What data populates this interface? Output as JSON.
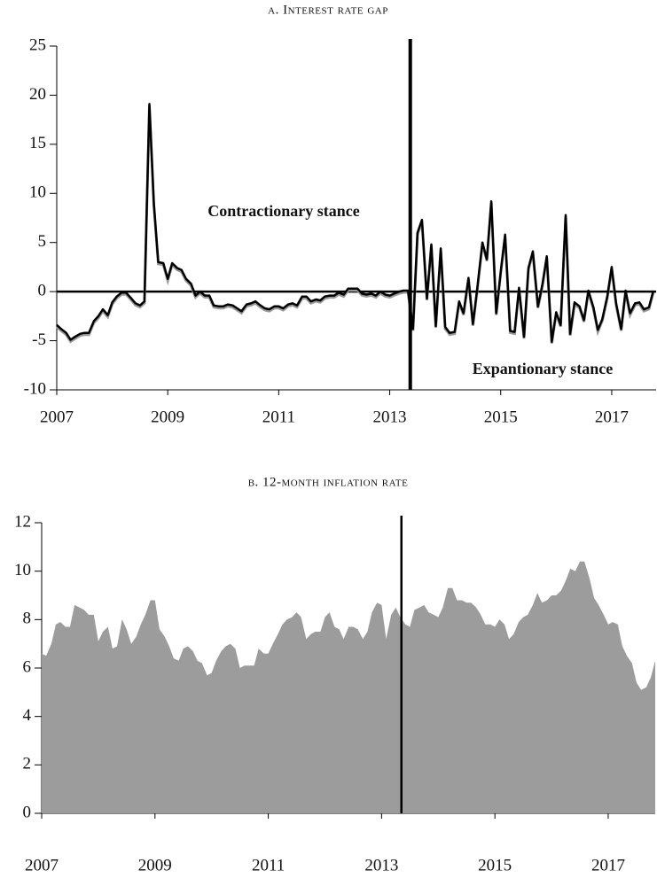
{
  "chart_data": [
    {
      "type": "line",
      "title": "a. Interest rate gap",
      "color": "#000000",
      "x": [
        2007,
        2007.08,
        2007.17,
        2007.25,
        2007.33,
        2007.42,
        2007.5,
        2007.58,
        2007.67,
        2007.75,
        2007.83,
        2007.92,
        2008,
        2008.08,
        2008.17,
        2008.25,
        2008.33,
        2008.42,
        2008.5,
        2008.58,
        2008.67,
        2008.75,
        2008.83,
        2008.92,
        2009,
        2009.08,
        2009.17,
        2009.25,
        2009.33,
        2009.42,
        2009.5,
        2009.58,
        2009.67,
        2009.75,
        2009.83,
        2009.92,
        2010,
        2010.08,
        2010.17,
        2010.25,
        2010.33,
        2010.42,
        2010.5,
        2010.58,
        2010.67,
        2010.75,
        2010.83,
        2010.92,
        2011,
        2011.08,
        2011.17,
        2011.25,
        2011.33,
        2011.42,
        2011.5,
        2011.58,
        2011.67,
        2011.75,
        2011.83,
        2011.92,
        2012,
        2012.08,
        2012.17,
        2012.25,
        2012.33,
        2012.42,
        2012.5,
        2012.58,
        2012.67,
        2012.75,
        2012.83,
        2012.92,
        2013,
        2013.08,
        2013.17,
        2013.25,
        2013.33,
        2013.42,
        2013.5,
        2013.58,
        2013.67,
        2013.75,
        2013.83,
        2013.92,
        2014,
        2014.08,
        2014.17,
        2014.25,
        2014.33,
        2014.42,
        2014.5,
        2014.58,
        2014.67,
        2014.75,
        2014.83,
        2014.92,
        2015,
        2015.08,
        2015.17,
        2015.25,
        2015.33,
        2015.42,
        2015.5,
        2015.58,
        2015.67,
        2015.75,
        2015.83,
        2015.92,
        2016,
        2016.08,
        2016.17,
        2016.25,
        2016.33,
        2016.42,
        2016.5,
        2016.58,
        2016.67,
        2016.75,
        2016.83,
        2016.92,
        2017,
        2017.08,
        2017.17,
        2017.25,
        2017.33,
        2017.42,
        2017.5,
        2017.58,
        2017.67,
        2017.75
      ],
      "values": [
        -3.4,
        -3.8,
        -4.2,
        -4.9,
        -4.6,
        -4.3,
        -4.2,
        -4.2,
        -3.0,
        -2.5,
        -1.8,
        -2.4,
        -1.1,
        -0.5,
        -0.1,
        -0.1,
        -0.6,
        -1.2,
        -1.4,
        -1.0,
        19.1,
        9.0,
        3.0,
        2.9,
        1.3,
        2.9,
        2.4,
        2.2,
        1.3,
        0.8,
        -0.4,
        0.0,
        -0.4,
        -0.4,
        -1.4,
        -1.5,
        -1.5,
        -1.3,
        -1.4,
        -1.7,
        -2.0,
        -1.3,
        -1.2,
        -1.0,
        -1.4,
        -1.7,
        -1.8,
        -1.5,
        -1.5,
        -1.7,
        -1.3,
        -1.2,
        -1.4,
        -0.5,
        -0.5,
        -1.0,
        -0.8,
        -0.9,
        -0.5,
        -0.4,
        -0.4,
        -0.1,
        -0.3,
        0.3,
        0.3,
        0.3,
        -0.2,
        -0.3,
        -0.2,
        -0.4,
        0.0,
        -0.3,
        -0.4,
        -0.2,
        0.0,
        0.1,
        0.1,
        -3.8,
        6.0,
        7.3,
        -0.7,
        4.8,
        -3.5,
        4.4,
        -3.6,
        -4.2,
        -4.1,
        -1.0,
        -2.2,
        1.4,
        -3.3,
        0.5,
        5.0,
        3.3,
        9.2,
        -2.2,
        2.0,
        5.8,
        -4.0,
        -4.1,
        0.4,
        -4.6,
        2.4,
        4.1,
        -1.5,
        0.7,
        3.6,
        -5.1,
        -2.1,
        -3.4,
        7.8,
        -4.3,
        -1.1,
        -1.5,
        -2.9,
        0.1,
        -1.6,
        -3.9,
        -2.8,
        -0.5,
        2.5,
        -1.2,
        -3.8,
        0.1,
        -2.2,
        -1.2,
        -1.1,
        -1.8,
        -1.6,
        0.1
      ],
      "xlim": [
        2007,
        2017.8
      ],
      "ylim": [
        -10,
        25
      ],
      "xticks": [
        2007,
        2009,
        2011,
        2013,
        2015,
        2017
      ],
      "yticks": [
        -10,
        -5,
        0,
        5,
        10,
        15,
        20,
        25
      ],
      "hline": 0,
      "vline": 2013.37,
      "annotations": [
        "Contractionary stance",
        "Expantionary stance"
      ]
    },
    {
      "type": "area",
      "title": "b. 12-month inflation rate",
      "color": "#9c9c9c",
      "x": [
        2007,
        2007.08,
        2007.17,
        2007.25,
        2007.33,
        2007.42,
        2007.5,
        2007.58,
        2007.67,
        2007.75,
        2007.83,
        2007.92,
        2008,
        2008.08,
        2008.17,
        2008.25,
        2008.33,
        2008.42,
        2008.5,
        2008.58,
        2008.67,
        2008.75,
        2008.83,
        2008.92,
        2009,
        2009.08,
        2009.17,
        2009.25,
        2009.33,
        2009.42,
        2009.5,
        2009.58,
        2009.67,
        2009.75,
        2009.83,
        2009.92,
        2010,
        2010.08,
        2010.17,
        2010.25,
        2010.33,
        2010.42,
        2010.5,
        2010.58,
        2010.67,
        2010.75,
        2010.83,
        2010.92,
        2011,
        2011.08,
        2011.17,
        2011.25,
        2011.33,
        2011.42,
        2011.5,
        2011.58,
        2011.67,
        2011.75,
        2011.83,
        2011.92,
        2012,
        2012.08,
        2012.17,
        2012.25,
        2012.33,
        2012.42,
        2012.5,
        2012.58,
        2012.67,
        2012.75,
        2012.83,
        2012.92,
        2013,
        2013.08,
        2013.17,
        2013.25,
        2013.33,
        2013.42,
        2013.5,
        2013.58,
        2013.67,
        2013.75,
        2013.83,
        2013.92,
        2014,
        2014.08,
        2014.17,
        2014.25,
        2014.33,
        2014.42,
        2014.5,
        2014.58,
        2014.67,
        2014.75,
        2014.83,
        2014.92,
        2015,
        2015.08,
        2015.17,
        2015.25,
        2015.33,
        2015.42,
        2015.5,
        2015.58,
        2015.67,
        2015.75,
        2015.83,
        2015.92,
        2016,
        2016.08,
        2016.17,
        2016.25,
        2016.33,
        2016.42,
        2016.5,
        2016.58,
        2016.67,
        2016.75,
        2016.83,
        2016.92,
        2017,
        2017.08,
        2017.17,
        2017.25,
        2017.33,
        2017.42,
        2017.5,
        2017.58,
        2017.67,
        2017.75,
        2017.83
      ],
      "values": [
        6.6,
        6.5,
        7.0,
        7.8,
        7.9,
        7.7,
        7.7,
        8.6,
        8.5,
        8.4,
        8.2,
        8.2,
        7.1,
        7.5,
        7.7,
        6.8,
        6.9,
        8.0,
        7.6,
        7.0,
        7.3,
        7.8,
        8.2,
        8.8,
        8.8,
        7.6,
        7.3,
        6.9,
        6.4,
        6.3,
        6.8,
        6.9,
        6.7,
        6.3,
        6.2,
        5.7,
        5.8,
        6.3,
        6.7,
        6.9,
        7.0,
        6.8,
        6.0,
        6.1,
        6.1,
        6.1,
        6.8,
        6.6,
        6.6,
        7.0,
        7.4,
        7.8,
        8.0,
        8.1,
        8.3,
        8.1,
        7.2,
        7.4,
        7.5,
        7.5,
        8.1,
        8.3,
        7.7,
        7.6,
        7.2,
        7.7,
        7.7,
        7.6,
        7.2,
        7.5,
        8.3,
        8.7,
        8.6,
        7.2,
        8.2,
        8.5,
        8.1,
        7.8,
        7.7,
        8.4,
        8.5,
        8.6,
        8.3,
        8.2,
        8.1,
        8.5,
        9.3,
        9.3,
        8.8,
        8.8,
        8.7,
        8.7,
        8.5,
        8.2,
        7.8,
        7.8,
        7.7,
        8.0,
        7.8,
        7.2,
        7.4,
        7.9,
        8.1,
        8.2,
        8.6,
        9.1,
        8.7,
        8.8,
        9.0,
        9.0,
        9.2,
        9.6,
        10.1,
        10.0,
        10.4,
        10.4,
        9.7,
        8.9,
        8.6,
        8.2,
        7.8,
        7.9,
        7.8,
        6.9,
        6.5,
        6.2,
        5.4,
        5.1,
        5.2,
        5.6,
        6.3
      ],
      "xlim": [
        2007,
        2017.83
      ],
      "ylim": [
        0,
        12
      ],
      "xticks": [
        2007,
        2009,
        2011,
        2013,
        2015,
        2017
      ],
      "yticks": [
        0,
        2,
        4,
        6,
        8,
        10,
        12
      ],
      "vline": 2013.35
    }
  ]
}
